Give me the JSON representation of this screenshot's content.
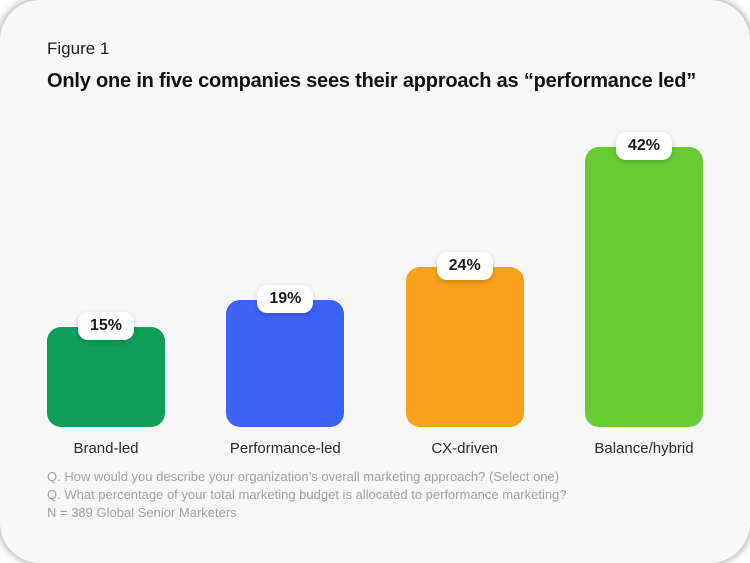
{
  "figure_label": "Figure 1",
  "title": "Only one in five companies sees their approach as “performance led”",
  "chart_data": {
    "type": "bar",
    "categories": [
      "Brand-led",
      "Performance-led",
      "CX-driven",
      "Balance/hybrid"
    ],
    "values": [
      15,
      19,
      24,
      42
    ],
    "value_labels": [
      "15%",
      "19%",
      "24%",
      "42%"
    ],
    "colors": [
      "#0EA05A",
      "#3D63F5",
      "#F9A11B",
      "#66CC31"
    ],
    "title": "Only one in five companies sees their approach as “performance led”",
    "xlabel": "",
    "ylabel": "",
    "ylim": [
      0,
      45
    ],
    "grid": false,
    "legend": "none",
    "badge_background": "#ffffff",
    "card_background": "#f7f7f7"
  },
  "footnotes": {
    "line1": "Q. How would you describe your organization’s overall marketing approach? (Select one)",
    "line2": "Q. What percentage of your total marketing budget is allocated to performance marketing?",
    "line3": "N = 389 Global Senior Marketers"
  }
}
